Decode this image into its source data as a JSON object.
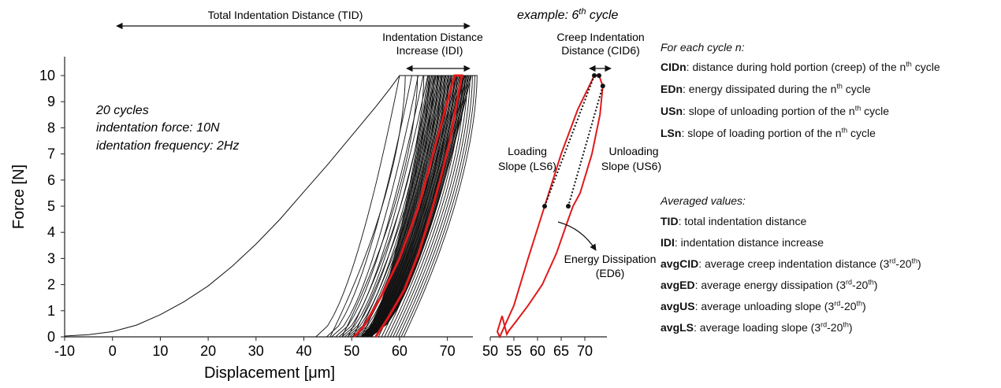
{
  "chart_data": [
    {
      "type": "line",
      "xlabel": "Displacement [μm]",
      "ylabel": "Force [N]",
      "xlim": [
        -10,
        75
      ],
      "ylim": [
        0,
        10.6
      ],
      "xticks": [
        -10,
        0,
        10,
        20,
        30,
        40,
        50,
        60,
        70
      ],
      "yticks": [
        0,
        1,
        2,
        3,
        4,
        5,
        6,
        7,
        8,
        9,
        10
      ],
      "grid": false,
      "annotations": {
        "tid": "Total Indentation Distance (TID)",
        "idi_line1": "Indentation Distance",
        "idi_line2": "Increase (IDI)",
        "info1": "20 cycles",
        "info2": "indentation force: 10N",
        "info3": "identation frequency: 2Hz"
      },
      "series": [
        {
          "role": "first-loading",
          "x": [
            -10,
            -5,
            0,
            5,
            10,
            15,
            20,
            25,
            30,
            35,
            40,
            45,
            50,
            55,
            58,
            60,
            64
          ],
          "y": [
            0.03,
            0.08,
            0.2,
            0.45,
            0.85,
            1.35,
            1.95,
            2.7,
            3.55,
            4.5,
            5.55,
            6.6,
            7.7,
            8.8,
            9.5,
            10,
            10
          ]
        },
        {
          "role": "cycles-range",
          "start_x": [
            42.5,
            75
          ],
          "peak_x": [
            60,
            75
          ],
          "peak_y": 10
        },
        {
          "role": "highlighted-cycle-6",
          "color": "#e0191b",
          "loading_x": [
            50.5,
            52.5,
            56,
            60,
            64,
            67,
            70,
            71.5
          ],
          "loading_y": [
            0,
            0.4,
            1.5,
            3.0,
            5.0,
            7.0,
            9.0,
            10
          ],
          "unloading_x": [
            73,
            72,
            70.5,
            68.5,
            66.5,
            64,
            61,
            57.5,
            55
          ],
          "unloading_y": [
            10,
            9,
            7.5,
            6,
            4.7,
            3.2,
            1.8,
            0.7,
            0
          ]
        }
      ]
    },
    {
      "type": "line",
      "title": "example: 6th cycle",
      "title_main": "example: 6",
      "title_sup": "th",
      "title_tail": " cycle",
      "xlim": [
        50,
        75
      ],
      "ylim": [
        0,
        10.6
      ],
      "xticks": [
        50,
        55,
        60,
        65,
        70
      ],
      "grid": false,
      "annotations": {
        "cid_line1": "Creep Indentation",
        "cid_line2": "Distance (CID6)",
        "ls_line1": "Loading",
        "ls_line2": "Slope (LS6)",
        "us_line1": "Unloading",
        "us_line2": "Slope (US6)",
        "ed_line1": "Energy Dissipation",
        "ed_line2": "(ED6)"
      },
      "series": [
        {
          "role": "cycle-6",
          "color": "#e0191b",
          "x": [
            52.5,
            51.5,
            52,
            55,
            58,
            61.5,
            65,
            68.5,
            72,
            73,
            73.8,
            73.2,
            71.5,
            69,
            67.5,
            66.5,
            64,
            61,
            58,
            55.5,
            54,
            53.5,
            52.5
          ],
          "y": [
            0.8,
            0.2,
            0.0,
            1.2,
            3.0,
            5.0,
            7.0,
            8.7,
            10,
            10,
            9.6,
            8.5,
            7,
            5.5,
            5.0,
            4.5,
            3.2,
            2.0,
            1.2,
            0.6,
            0.25,
            0.1,
            0.8
          ]
        },
        {
          "role": "loading-slope-fit",
          "x": [
            61.5,
            72
          ],
          "y": [
            5,
            10
          ]
        },
        {
          "role": "unloading-slope-fit",
          "x": [
            73.8,
            66.5
          ],
          "y": [
            9.6,
            5
          ]
        },
        {
          "role": "key-points",
          "x": [
            61.5,
            66.5,
            72,
            73,
            73.8
          ],
          "y": [
            5,
            5,
            10,
            10,
            9.6
          ]
        }
      ]
    }
  ],
  "legend": {
    "cycle_header": "For each cycle n:",
    "cycle_items": [
      {
        "term": "CIDn",
        "text": ": distance during hold portion (creep) of the n",
        "sup": "th",
        "tail": " cycle"
      },
      {
        "term": "EDn",
        "text": ": energy dissipated during the n",
        "sup": "th",
        "tail": " cycle"
      },
      {
        "term": "USn",
        "text": ": slope of unloading portion of the n",
        "sup": "th",
        "tail": " cycle"
      },
      {
        "term": "LSn",
        "text": ": slope of loading portion of the n",
        "sup": "th",
        "tail": " cycle"
      }
    ],
    "avg_header": "Averaged values:",
    "avg_items": [
      {
        "term": "TID",
        "text": ": total indentation distance",
        "sup": "",
        "mid": "",
        "sup2": "",
        "tail": ""
      },
      {
        "term": "IDI",
        "text": ": indentation distance increase",
        "sup": "",
        "mid": "",
        "sup2": "",
        "tail": ""
      },
      {
        "term": "avgCID",
        "text": ": average creep indentation distance (3",
        "sup": "rd",
        "mid": "-20",
        "sup2": "th",
        "tail": ")"
      },
      {
        "term": "avgED",
        "text": ": average energy dissipation (3",
        "sup": "rd",
        "mid": "-20",
        "sup2": "th",
        "tail": ")"
      },
      {
        "term": "avgUS",
        "text": ": average unloading slope (3",
        "sup": "rd",
        "mid": "-20",
        "sup2": "th",
        "tail": ")"
      },
      {
        "term": "avgLS",
        "text": ": average loading slope (3",
        "sup": "rd",
        "mid": "-20",
        "sup2": "th",
        "tail": ")"
      }
    ]
  }
}
